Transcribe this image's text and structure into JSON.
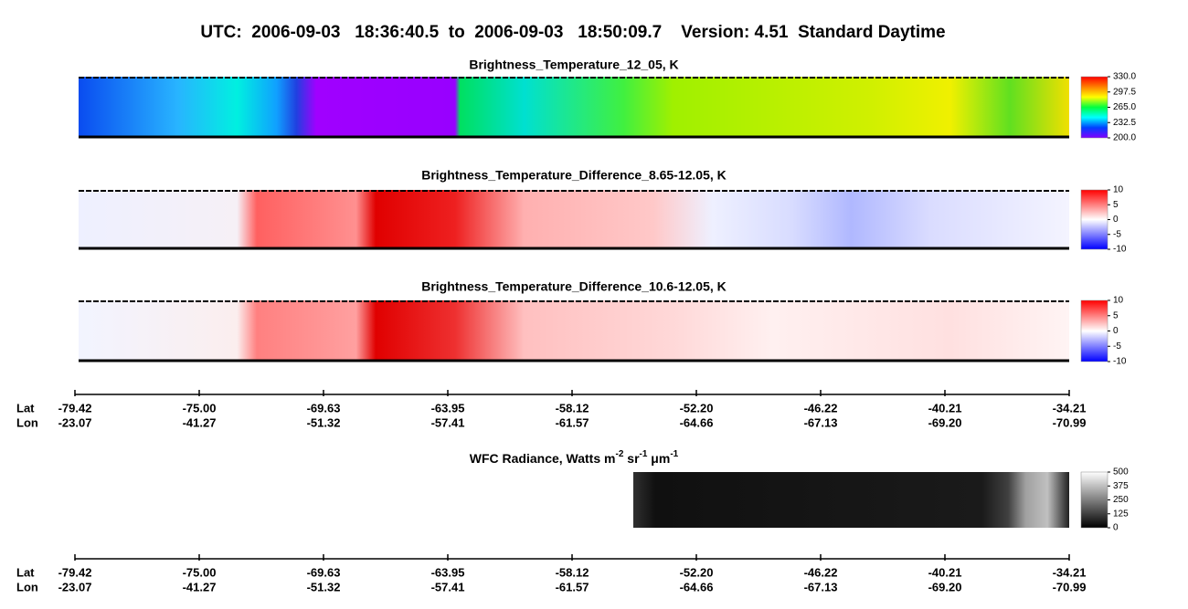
{
  "title": "UTC:  2006-09-03   18:36:40.5  to  2006-09-03   18:50:09.7    Version: 4.51  Standard Daytime",
  "chart_data": [
    {
      "type": "image",
      "title": "Brightness_Temperature_12_05, K",
      "colormap": [
        "#8000ff",
        "#0040ff",
        "#00ffff",
        "#00ff40",
        "#ffff00",
        "#ff8000",
        "#ff0000"
      ],
      "ylim": [
        200,
        330
      ],
      "yticks": [
        {
          "value": 200,
          "label": "200.0"
        },
        232.5,
        {
          "value": 265,
          "label": "265.0"
        },
        297.5,
        {
          "value": 330,
          "label": "330.0"
        }
      ]
    },
    {
      "type": "image",
      "title": "Brightness_Temperature_Difference_8.65-12.05, K",
      "colormap": [
        "#0000ff",
        "#ffffff",
        "#ff0000"
      ],
      "ylim": [
        -10,
        10
      ],
      "yticks": [
        -10,
        -5,
        0,
        5,
        10
      ]
    },
    {
      "type": "image",
      "title": "Brightness_Temperature_Difference_10.6-12.05, K",
      "colormap": [
        "#0000ff",
        "#ffffff",
        "#ff0000"
      ],
      "ylim": [
        -10,
        10
      ],
      "yticks": [
        -10,
        -5,
        0,
        5,
        10
      ]
    },
    {
      "type": "image",
      "title_parts": [
        "WFC Radiance, Watts m",
        "-2",
        " sr",
        "-1",
        " μm",
        "-1"
      ],
      "colormap": [
        "#000000",
        "#ffffff"
      ],
      "ylim": [
        0,
        500
      ],
      "yticks": [
        0,
        125,
        250,
        375,
        500
      ]
    }
  ],
  "axis_labels": [
    "Lat",
    "Lon"
  ],
  "lat_ticks": [
    -79.42,
    {
      "value": -75,
      "label": "-75.00"
    },
    -69.63,
    -63.95,
    -58.12,
    {
      "value": -52.2,
      "label": "-52.20"
    },
    -46.22,
    -40.21,
    -34.21
  ],
  "lon_ticks": [
    -23.07,
    -41.27,
    -51.32,
    -57.41,
    -61.57,
    -64.66,
    -67.13,
    {
      "value": -69.2,
      "label": "-69.20"
    },
    -70.99
  ]
}
